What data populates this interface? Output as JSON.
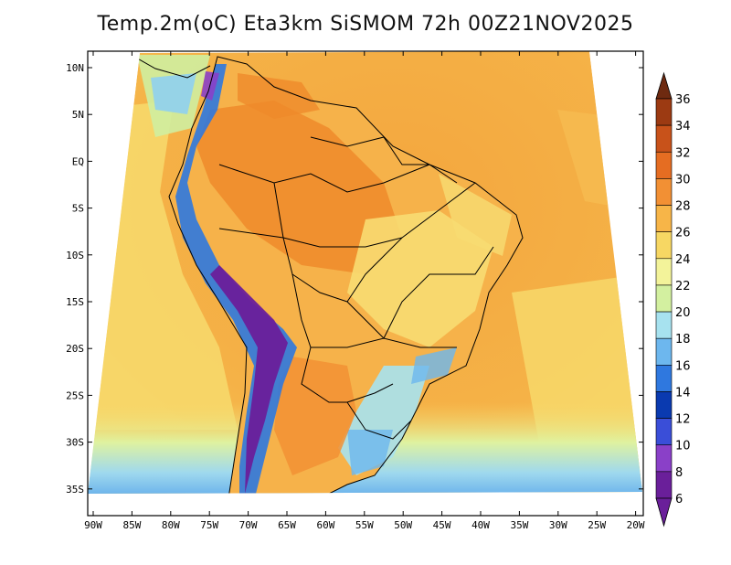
{
  "title": "Temp.2m(oC) Eta3km SiSMOM 72h 00Z21NOV2025",
  "colors": {
    "ocean_warm": "#f4b34a",
    "ocean_cool": "#f7d86a",
    "land_hot": "#ef8a2a",
    "land_warm": "#f6b24a",
    "land_mild": "#f8dc72",
    "andes_cold": "#6a1f9a",
    "andes_mid": "#2a5bd8",
    "south_cool": "#8fd0ef",
    "south_green": "#cfeea0",
    "frame": "#000000"
  },
  "map": {
    "y_ticks": [
      "10N",
      "5N",
      "EQ",
      "5S",
      "10S",
      "15S",
      "20S",
      "25S",
      "30S",
      "35S"
    ],
    "x_ticks": [
      "90W",
      "85W",
      "80W",
      "75W",
      "70W",
      "65W",
      "60W",
      "55W",
      "50W",
      "45W",
      "40W",
      "35W",
      "30W",
      "25W",
      "20W"
    ]
  },
  "colorbar": {
    "labels": [
      "36",
      "34",
      "32",
      "30",
      "28",
      "26",
      "24",
      "22",
      "20",
      "18",
      "16",
      "14",
      "12",
      "10",
      "8",
      "6"
    ],
    "colors": [
      "#6e2a10",
      "#9c3a12",
      "#c8521a",
      "#e56d22",
      "#f29034",
      "#f7b548",
      "#f7d763",
      "#f3f39a",
      "#d3f0a0",
      "#a7e2ef",
      "#6db7ee",
      "#2f78df",
      "#0a3ab0",
      "#3a4ed8",
      "#8a40c8",
      "#6a1f9a"
    ]
  }
}
